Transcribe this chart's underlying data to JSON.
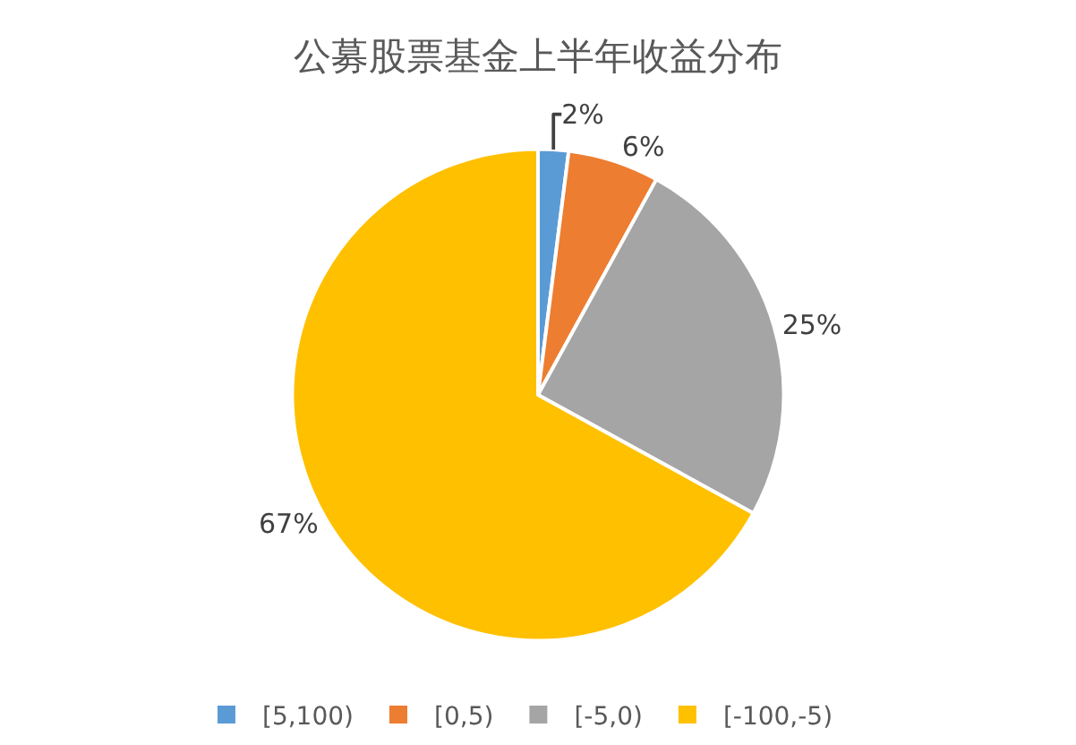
{
  "chart_data": {
    "type": "pie",
    "title": "公募股票基金上半年收益分布",
    "categories": [
      "[5,100)",
      "[0,5)",
      "[-5,0)",
      "[-100,-5)"
    ],
    "values": [
      2,
      6,
      25,
      67
    ],
    "colors": [
      "#5b9bd5",
      "#ed7d31",
      "#a5a5a5",
      "#ffc000"
    ],
    "value_labels": [
      "2%",
      "6%",
      "25%",
      "67%"
    ],
    "legend": "bottom"
  }
}
